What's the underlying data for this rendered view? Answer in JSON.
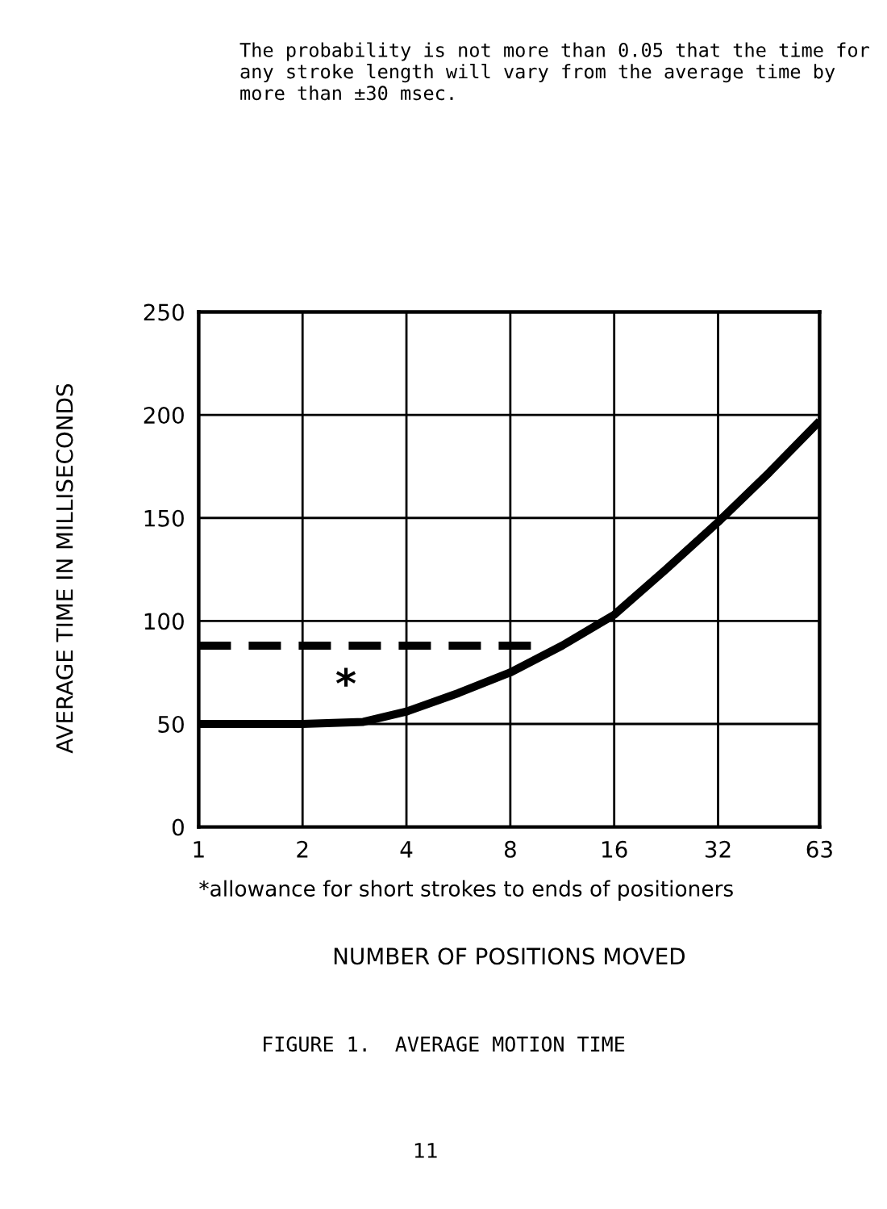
{
  "chart_data": {
    "type": "line",
    "log": "x",
    "xlabel": "NUMBER OF POSITIONS MOVED",
    "ylabel": "AVERAGE TIME IN MILLISECONDS",
    "series": [
      {
        "color": "#000000",
        "line_style": "solid",
        "x": [
          1,
          2,
          3,
          4,
          5.66,
          8,
          11.3,
          16,
          22.6,
          32,
          45,
          63
        ],
        "values": [
          50,
          50,
          51,
          56,
          65,
          75,
          88,
          103,
          125,
          148,
          172,
          197
        ]
      },
      {
        "color": "#000000",
        "line_style": "dashed",
        "x": [
          1,
          10
        ],
        "values": [
          88,
          88
        ]
      }
    ],
    "xlim": [
      1,
      63
    ],
    "xticks": [
      1,
      2,
      4,
      8,
      16,
      32,
      63
    ],
    "ylim": [
      0,
      250
    ],
    "yticks": [
      0,
      50,
      100,
      150,
      200,
      250
    ],
    "grid": true,
    "marker": "none",
    "annotations": [
      "The probability is not more than 0.05 that the time for any stroke length will vary from the average time by more than ±30 msec.",
      "*",
      "*allowance for short strokes to ends of positioners",
      "FIGURE 1.  AVERAGE MOTION TIME",
      "11"
    ]
  }
}
